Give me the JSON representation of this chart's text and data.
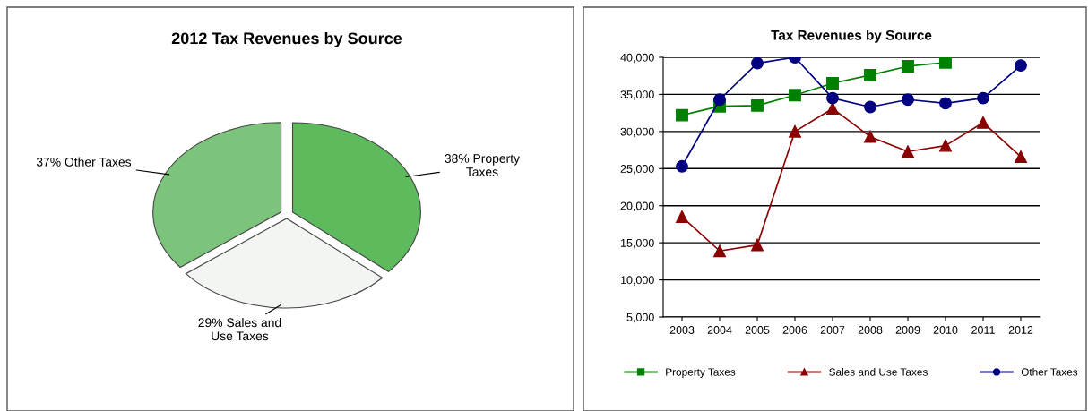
{
  "chart_data": [
    {
      "type": "pie",
      "title": "2012 Tax Revenues by Source",
      "categories": [
        "38% Property\nTaxes",
        "29% Sales and\nUse Taxes",
        "37% Other Taxes"
      ],
      "values": [
        38,
        29,
        37
      ],
      "colors": [
        "#5dbb5d",
        "#f2f5f2",
        "#7cc47c"
      ]
    },
    {
      "type": "line",
      "title": "Tax Revenues by Source",
      "categories": [
        "2003",
        "2004",
        "2005",
        "2006",
        "2007",
        "2008",
        "2009",
        "2010",
        "2011",
        "2012"
      ],
      "series": [
        {
          "name": "Property Taxes",
          "color": "#008000",
          "marker": "square",
          "values": [
            32200,
            33400,
            33500,
            34900,
            36500,
            37600,
            38800,
            39300,
            null,
            null
          ]
        },
        {
          "name": "Sales and Use Taxes",
          "color": "#8b0000",
          "marker": "triangle",
          "values": [
            18500,
            13900,
            14700,
            30000,
            33100,
            29300,
            27300,
            28100,
            31200,
            26600
          ]
        },
        {
          "name": "Other Taxes",
          "color": "#000080",
          "marker": "circle",
          "values": [
            25300,
            34300,
            39200,
            40000,
            34500,
            33300,
            34300,
            33800,
            34500,
            38900
          ]
        }
      ],
      "ylim": [
        5000,
        40000
      ],
      "yticks": [
        {
          "value": 5000,
          "label": "5,000"
        },
        {
          "value": 10000,
          "label": "10,000"
        },
        {
          "value": 15000,
          "label": "15,000"
        },
        {
          "value": 20000,
          "label": "20,000"
        },
        {
          "value": 25000,
          "label": "25,000"
        },
        {
          "value": 30000,
          "label": "30,000"
        },
        {
          "value": 35000,
          "label": "35,000"
        },
        {
          "value": 40000,
          "label": "40,000"
        }
      ],
      "grid": "y",
      "legend": "bottom",
      "line_style": "solid"
    }
  ]
}
